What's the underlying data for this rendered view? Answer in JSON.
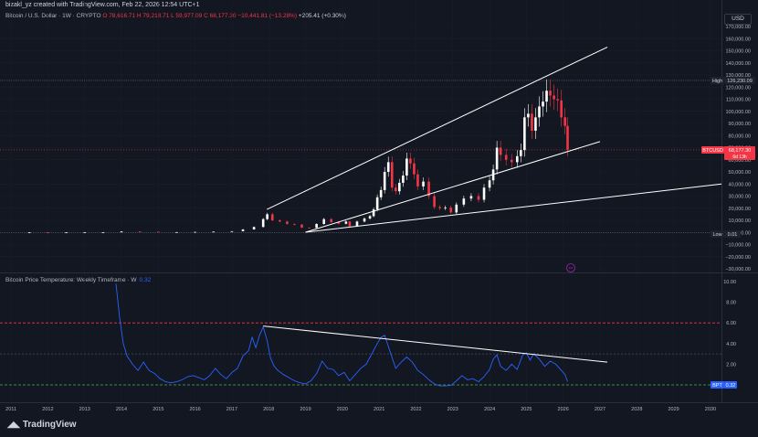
{
  "header": {
    "created_line": "bizakl_yz created with TradingView.com, Feb 22, 2026 12:54 UTC+1",
    "symbol": "Bitcoin / U.S. Dollar · 1W · CRYPTO",
    "ohlc": {
      "open": "O 78,616.71",
      "high": "H 79,218.71",
      "low": "L 59,977.09",
      "close": "C 68,177.30",
      "change": "−10,441.81 (−13.28%)",
      "extra": "+205.41 (+0.30%)"
    }
  },
  "currency_button": "USD",
  "price_labels": {
    "high_tag": "High",
    "high_value": "126,230.09",
    "low_tag": "Low",
    "low_value": "0.01",
    "current_tag": "BTCUSD",
    "current_value": "68,177.30",
    "current_countdown": "6d 13h"
  },
  "indicator": {
    "title": "Bitcoin Price Temperature: Weekly Timeframe · W",
    "value": "0.32",
    "badge_tag": "BPT",
    "badge_value": "0.32"
  },
  "brand": "TradingView",
  "colors": {
    "background": "#131722",
    "candle_up": "#ffffff",
    "candle_down": "#f23645",
    "indicator_line": "#2962ff",
    "low_zone_line": "#4caf50",
    "upper_dashed": "#f23645",
    "mid_dashed": "#4caf50",
    "trendline": "#ffffff"
  },
  "chart_data": [
    {
      "type": "candlestick",
      "price_axis": [
        "170,000.00",
        "160,000.00",
        "150,000.00",
        "140,000.00",
        "130,000.00",
        "120,000.00",
        "110,000.00",
        "100,000.00",
        "90,000.00",
        "80,000.00",
        "70,000.00",
        "60,000.00",
        "50,000.00",
        "40,000.00",
        "30,000.00",
        "20,000.00",
        "10,000.00",
        "0.00",
        "−10,000.00",
        "−20,000.00",
        "−30,000.00"
      ],
      "time_axis": [
        "2011",
        "2012",
        "2013",
        "2014",
        "2015",
        "2016",
        "2017",
        "2018",
        "2019",
        "2020",
        "2021",
        "2022",
        "2023",
        "2024",
        "2025",
        "2026",
        "2027",
        "2028",
        "2029",
        "2030"
      ],
      "ylim": [
        -33000,
        178000
      ],
      "xlim": [
        2010.7,
        2030.3
      ],
      "series": [
        {
          "x": [
            2011.5,
            2012.0,
            2012.5,
            2013.0,
            2013.5,
            2014.0,
            2014.5,
            2015.0,
            2015.5,
            2016.0,
            2016.5,
            2017.0,
            2017.3,
            2017.6,
            2017.85,
            2017.96,
            2018.1,
            2018.3,
            2018.5,
            2018.7,
            2018.9,
            2019.1,
            2019.3,
            2019.5,
            2019.7,
            2019.9,
            2020.1,
            2020.2,
            2020.4,
            2020.6,
            2020.75,
            2020.85,
            2020.95,
            2021.05,
            2021.15,
            2021.25,
            2021.35,
            2021.45,
            2021.55,
            2021.65,
            2021.75,
            2021.85,
            2021.95,
            2022.05,
            2022.2,
            2022.35,
            2022.5,
            2022.65,
            2022.8,
            2022.95,
            2023.1,
            2023.3,
            2023.5,
            2023.7,
            2023.85,
            2024.0,
            2024.1,
            2024.2,
            2024.3,
            2024.45,
            2024.6,
            2024.75,
            2024.85,
            2024.95,
            2025.05,
            2025.15,
            2025.25,
            2025.35,
            2025.45,
            2025.55,
            2025.65,
            2025.75,
            2025.85,
            2025.95,
            2026.05,
            2026.12
          ],
          "close": [
            20,
            5,
            10,
            100,
            100,
            800,
            600,
            250,
            250,
            400,
            650,
            1000,
            2500,
            4500,
            11000,
            15000,
            10000,
            9000,
            7000,
            6500,
            4000,
            3800,
            7000,
            11000,
            8500,
            7200,
            9000,
            5000,
            9000,
            11500,
            13500,
            19000,
            29000,
            35000,
            50000,
            58000,
            37000,
            34000,
            41000,
            47000,
            61000,
            57000,
            48000,
            38000,
            42000,
            30000,
            21000,
            20000,
            20500,
            16500,
            23000,
            28000,
            30000,
            27000,
            37000,
            43000,
            52000,
            70000,
            64000,
            60000,
            58000,
            63000,
            68000,
            95000,
            98000,
            84000,
            95000,
            104000,
            108000,
            117000,
            113000,
            110000,
            109000,
            95000,
            88000,
            68177
          ]
        }
      ]
    },
    {
      "type": "line",
      "title": "Bitcoin Price Temperature: Weekly Timeframe · W",
      "value_axis": [
        "10.00",
        "8.00",
        "6.00",
        "4.00",
        "2.00"
      ],
      "ylim": [
        -0.4,
        11.1
      ],
      "reference_levels": [
        6.0,
        3.0,
        0.0
      ],
      "series": [
        {
          "x": [
            2013.85,
            2013.95,
            2014.05,
            2014.15,
            2014.3,
            2014.45,
            2014.6,
            2014.75,
            2014.9,
            2015.05,
            2015.2,
            2015.35,
            2015.5,
            2015.65,
            2015.8,
            2015.95,
            2016.1,
            2016.25,
            2016.4,
            2016.55,
            2016.7,
            2016.85,
            2017.0,
            2017.15,
            2017.3,
            2017.45,
            2017.55,
            2017.65,
            2017.75,
            2017.85,
            2017.95,
            2018.05,
            2018.15,
            2018.25,
            2018.4,
            2018.55,
            2018.7,
            2018.85,
            2019.0,
            2019.15,
            2019.3,
            2019.45,
            2019.6,
            2019.75,
            2019.9,
            2020.05,
            2020.2,
            2020.35,
            2020.5,
            2020.65,
            2020.8,
            2020.95,
            2021.05,
            2021.15,
            2021.3,
            2021.45,
            2021.6,
            2021.75,
            2021.9,
            2022.05,
            2022.2,
            2022.35,
            2022.5,
            2022.65,
            2022.8,
            2022.95,
            2023.1,
            2023.25,
            2023.4,
            2023.55,
            2023.7,
            2023.85,
            2024.0,
            2024.1,
            2024.2,
            2024.3,
            2024.45,
            2024.6,
            2024.75,
            2024.9,
            2025.0,
            2025.1,
            2025.2,
            2025.35,
            2025.5,
            2025.65,
            2025.8,
            2025.95,
            2026.05,
            2026.12
          ],
          "values": [
            9.8,
            6.5,
            4.0,
            2.8,
            2.0,
            1.4,
            2.2,
            1.4,
            1.1,
            0.6,
            0.3,
            0.2,
            0.3,
            0.5,
            0.8,
            0.9,
            0.7,
            0.5,
            0.9,
            1.6,
            1.0,
            0.6,
            1.2,
            1.6,
            2.8,
            3.3,
            4.6,
            3.6,
            4.8,
            5.6,
            4.4,
            2.6,
            1.8,
            1.4,
            1.0,
            0.7,
            0.4,
            0.2,
            0.1,
            0.4,
            1.1,
            2.3,
            1.6,
            1.5,
            0.9,
            1.2,
            0.4,
            1.0,
            1.6,
            2.0,
            3.0,
            4.0,
            4.6,
            4.8,
            3.2,
            1.6,
            2.2,
            2.7,
            2.2,
            1.4,
            1.0,
            0.5,
            0.1,
            -0.1,
            -0.1,
            -0.05,
            0.4,
            0.9,
            0.5,
            0.6,
            0.3,
            0.8,
            1.5,
            2.5,
            2.9,
            1.8,
            1.4,
            2.0,
            1.5,
            2.9,
            3.1,
            2.4,
            3.0,
            2.5,
            1.8,
            2.3,
            2.0,
            1.4,
            1.0,
            0.32
          ]
        }
      ]
    }
  ]
}
